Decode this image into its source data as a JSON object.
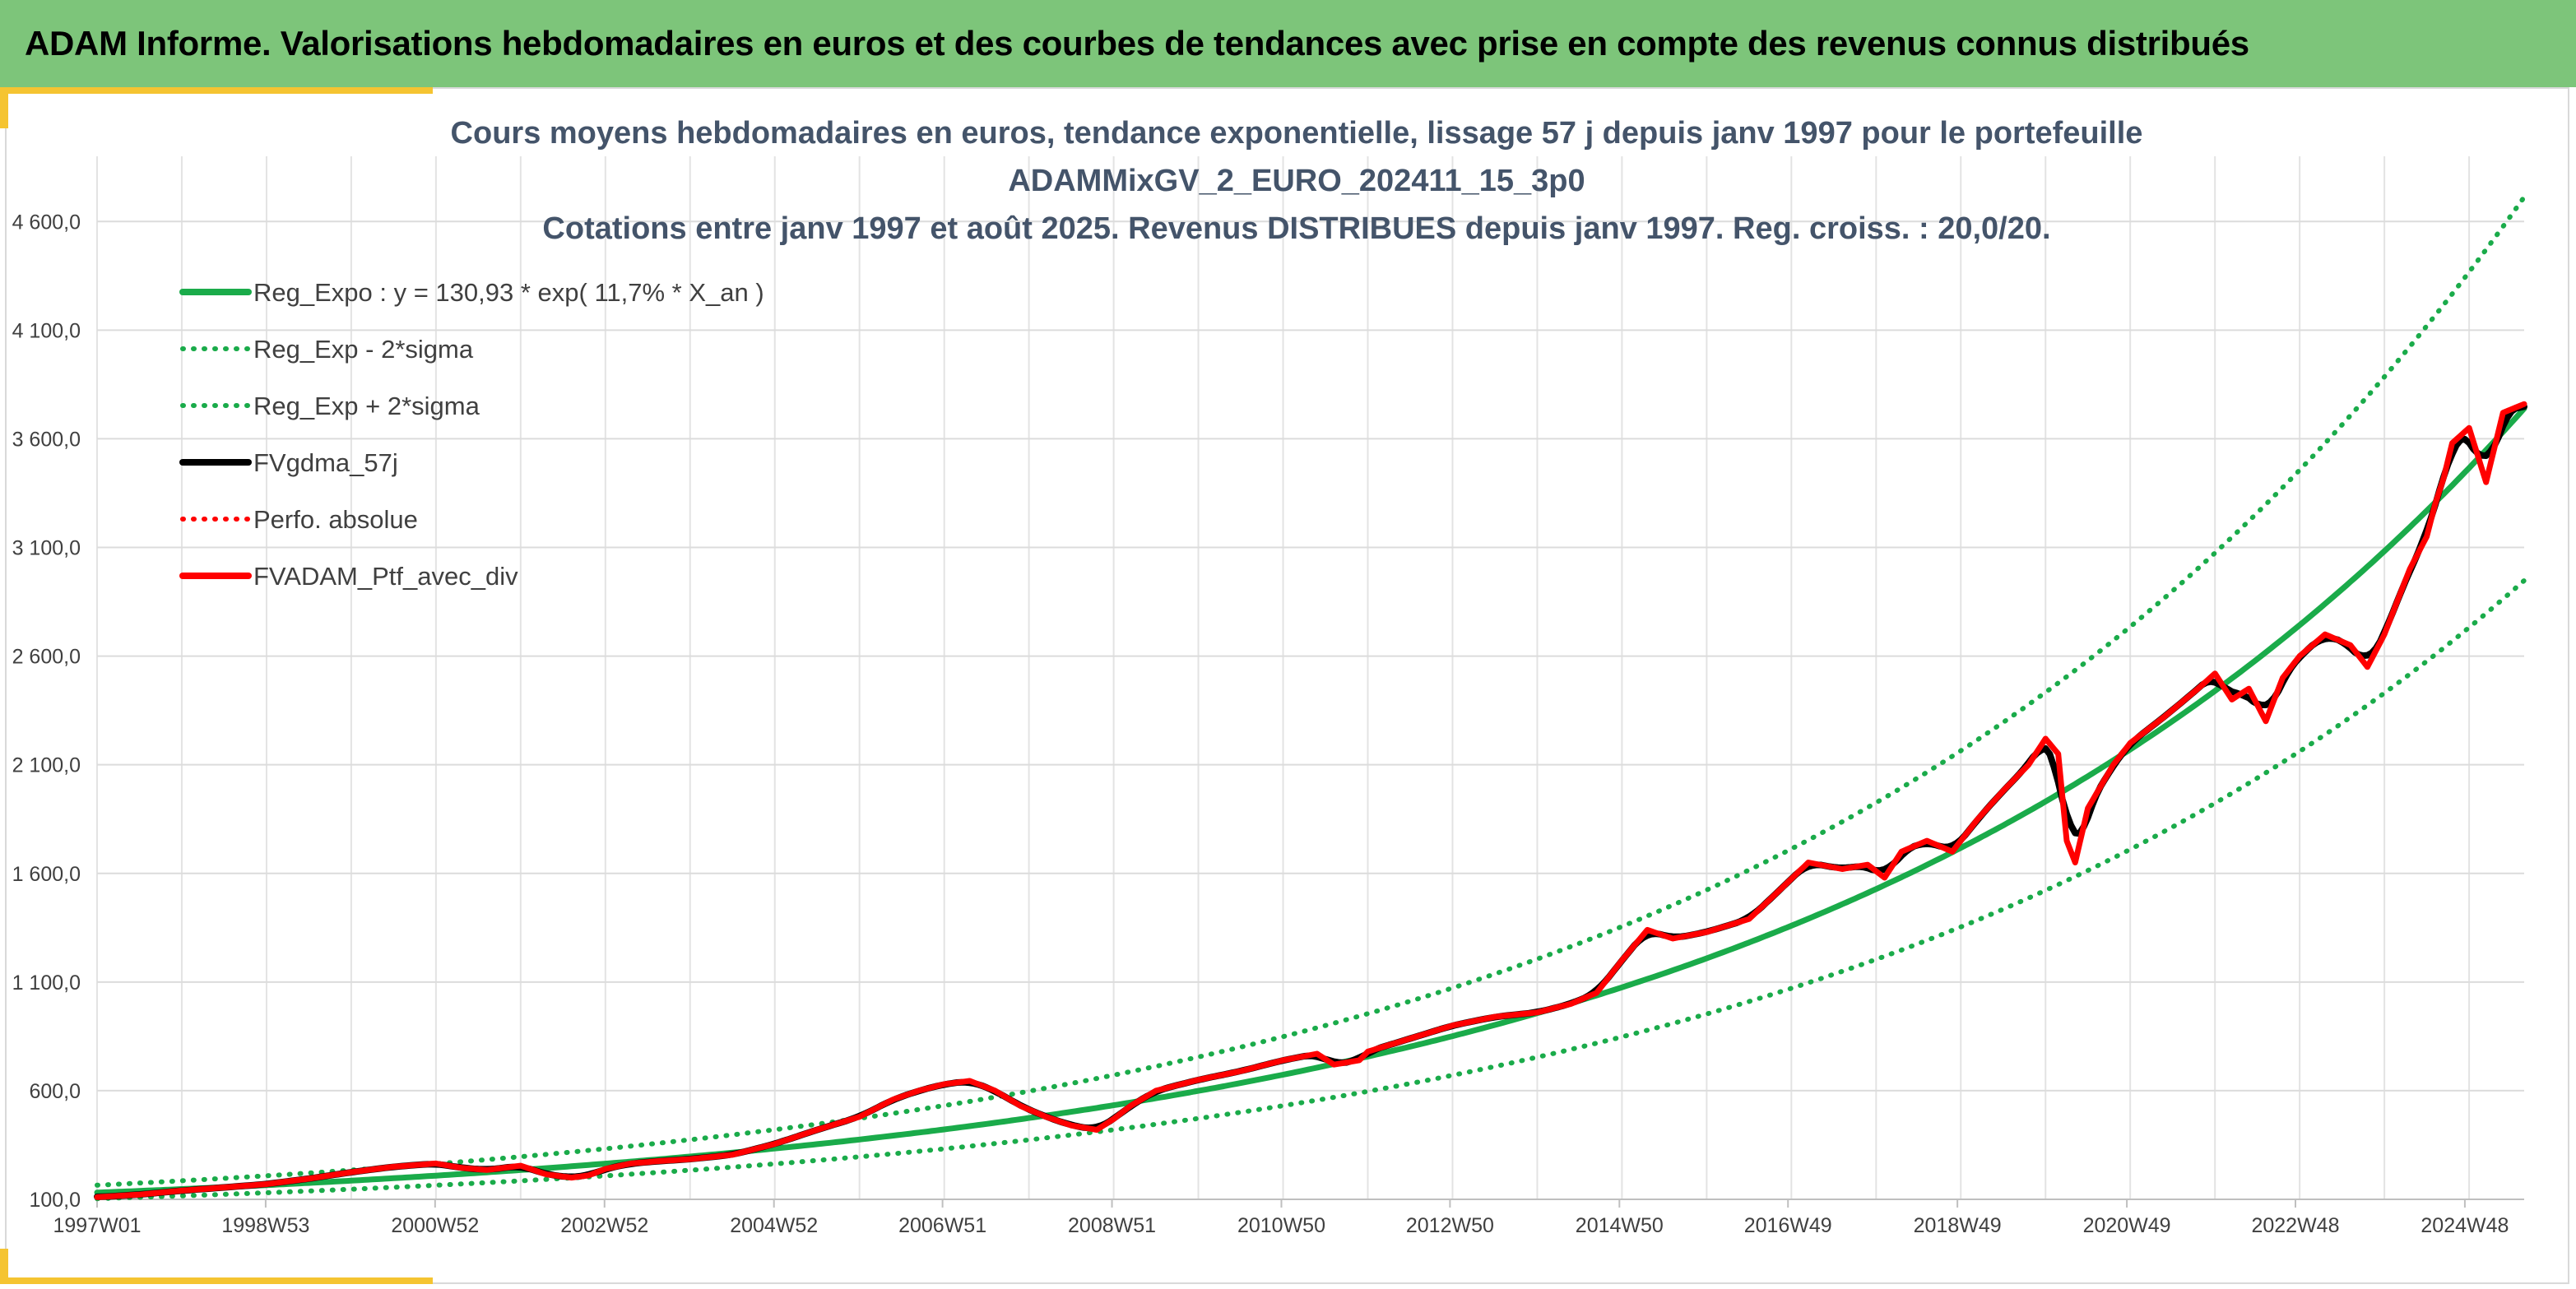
{
  "banner": {
    "title": "ADAM Informe. Valorisations hebdomadaires en euros et des courbes de tendances avec prise en compte des revenus connus distribués"
  },
  "colors": {
    "banner_bg": "#7dc57a",
    "accent": "#f5c431",
    "trend_green": "#1aab4a",
    "ma_black": "#000000",
    "portfolio_red": "#ff0000"
  },
  "chart_data": {
    "type": "line",
    "title": [
      "Cours moyens hebdomadaires en euros, tendance exponentielle, lissage 57 j depuis janv 1997 pour le portefeuille",
      "ADAMMixGV_2_EURO_202411_15_3p0",
      "Cotations entre janv 1997 et août 2025. Revenus DISTRIBUES depuis janv 1997. Reg. croiss. : 20,0/20."
    ],
    "xlabel": "",
    "ylabel": "",
    "x_range": [
      1997.0,
      2025.65
    ],
    "ylim": [
      100,
      4900
    ],
    "y_ticks": [
      100,
      600,
      1100,
      1600,
      2100,
      2600,
      3100,
      3600,
      4100,
      4600
    ],
    "y_tick_labels": [
      "100,0",
      "600,0",
      "1 100,0",
      "1 600,0",
      "2 100,0",
      "2 600,0",
      "3 100,0",
      "3 600,0",
      "4 100,0",
      "4 600,0"
    ],
    "x_ticks": [
      1997.0,
      1998.99,
      2000.99,
      2002.99,
      2004.99,
      2006.98,
      2008.98,
      2010.98,
      2012.97,
      2014.97,
      2016.96,
      2018.96,
      2020.96,
      2022.95,
      2024.95
    ],
    "x_tick_labels": [
      "1997W01",
      "1998W53",
      "2000W52",
      "2002W52",
      "2004W52",
      "2006W51",
      "2008W51",
      "2010W50",
      "2012W50",
      "2014W50",
      "2016W49",
      "2018W49",
      "2020W49",
      "2022W48",
      "2024W48"
    ],
    "grid": true,
    "legend_position": "top-left",
    "series": [
      {
        "name": "Reg_Expo : y = 130,93 * exp( 11,7% *  X_an )",
        "style": "solid",
        "color": "#1aab4a",
        "kind": "expo",
        "a": 130.93,
        "b": 0.117
      },
      {
        "name": "Reg_Exp - 2*sigma",
        "style": "dotted",
        "color": "#1aab4a",
        "kind": "expo",
        "a": 103.2,
        "b": 0.117
      },
      {
        "name": "Reg_Exp + 2*sigma",
        "style": "dotted",
        "color": "#1aab4a",
        "kind": "expo",
        "a": 165.0,
        "b": 0.117
      },
      {
        "name": "FVgdma_57j",
        "style": "solid",
        "color": "#000000",
        "kind": "ma"
      },
      {
        "name": "Perfo. absolue",
        "style": "dotted",
        "color": "#ff0000",
        "kind": "same"
      },
      {
        "name": "FVADAM_Ptf_avec_div",
        "style": "solid",
        "color": "#ff0000",
        "kind": "data",
        "x": [
          1997.0,
          1997.5,
          1998.0,
          1998.5,
          1999.0,
          1999.5,
          2000.0,
          2000.5,
          2001.0,
          2001.3,
          2001.6,
          2002.0,
          2002.3,
          2002.6,
          2002.8,
          2003.0,
          2003.3,
          2003.6,
          2004.0,
          2004.5,
          2005.0,
          2005.5,
          2006.0,
          2006.4,
          2006.7,
          2007.0,
          2007.3,
          2007.6,
          2007.9,
          2008.2,
          2008.5,
          2008.8,
          2009.0,
          2009.2,
          2009.5,
          2010.0,
          2010.5,
          2011.0,
          2011.4,
          2011.6,
          2011.9,
          2012.0,
          2012.5,
          2013.0,
          2013.5,
          2014.0,
          2014.4,
          2014.7,
          2015.0,
          2015.3,
          2015.6,
          2016.0,
          2016.5,
          2016.8,
          2017.2,
          2017.6,
          2017.9,
          2018.1,
          2018.3,
          2018.6,
          2018.9,
          2019.2,
          2019.5,
          2019.8,
          2020.0,
          2020.15,
          2020.25,
          2020.35,
          2020.5,
          2020.8,
          2021.0,
          2021.4,
          2021.8,
          2022.0,
          2022.2,
          2022.4,
          2022.6,
          2022.8,
          2023.0,
          2023.3,
          2023.6,
          2023.8,
          2024.0,
          2024.3,
          2024.5,
          2024.6,
          2024.7,
          2024.8,
          2025.0,
          2025.2,
          2025.4,
          2025.65
        ],
        "y": [
          110,
          122,
          140,
          155,
          170,
          195,
          225,
          250,
          265,
          245,
          235,
          255,
          215,
          200,
          210,
          240,
          265,
          275,
          285,
          305,
          355,
          420,
          480,
          560,
          600,
          630,
          645,
          600,
          530,
          480,
          440,
          420,
          470,
          530,
          600,
          650,
          690,
          740,
          770,
          720,
          740,
          780,
          840,
          900,
          940,
          960,
          1000,
          1050,
          1200,
          1340,
          1300,
          1330,
          1390,
          1500,
          1650,
          1620,
          1640,
          1580,
          1700,
          1750,
          1700,
          1850,
          1980,
          2100,
          2220,
          2150,
          1750,
          1650,
          1900,
          2100,
          2200,
          2320,
          2450,
          2520,
          2400,
          2450,
          2300,
          2500,
          2600,
          2700,
          2650,
          2550,
          2700,
          3000,
          3150,
          3300,
          3420,
          3580,
          3650,
          3400,
          3720,
          3760
        ]
      }
    ]
  }
}
